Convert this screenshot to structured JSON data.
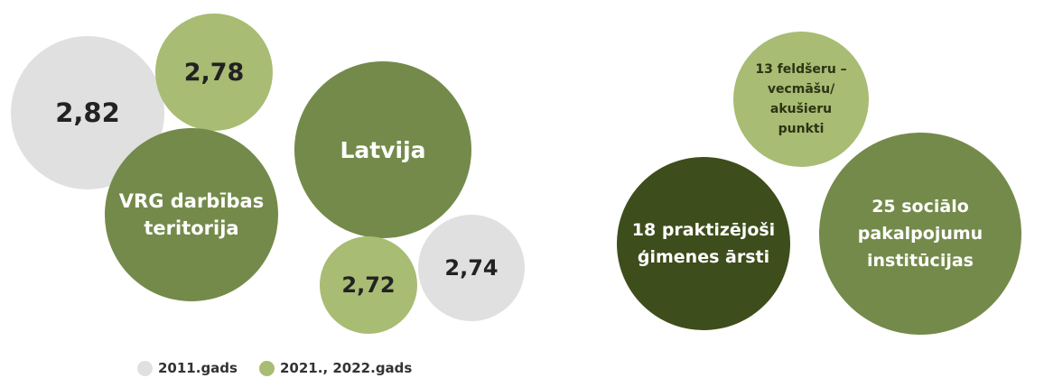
{
  "colors": {
    "gray": "#e0e0e0",
    "light_green": "#a8bc73",
    "mid_green": "#748a4a",
    "dark_green": "#3e4d1c",
    "text_dark": "#222222",
    "text_light": "#ffffff"
  },
  "chart_data": [
    {
      "type": "bubble",
      "title": "",
      "bubbles": [
        {
          "label": "2,82",
          "value": 2.82,
          "series": "2011.gads",
          "color": "gray"
        },
        {
          "label": "2,78",
          "value": 2.78,
          "series": "2021., 2022.gads",
          "color": "light_green"
        },
        {
          "label": "VRG darbības\nteritorija",
          "group": "VRG darbības teritorija",
          "color": "mid_green"
        },
        {
          "label": "Latvija",
          "group": "Latvija",
          "color": "mid_green"
        },
        {
          "label": "2,72",
          "value": 2.72,
          "series": "2021., 2022.gads",
          "color": "light_green"
        },
        {
          "label": "2,74",
          "value": 2.74,
          "series": "2011.gads",
          "color": "gray"
        }
      ],
      "legend": [
        {
          "name": "2011.gads",
          "color": "gray"
        },
        {
          "name": "2021., 2022.gads",
          "color": "light_green"
        }
      ],
      "legend_position": "bottom"
    },
    {
      "type": "bubble",
      "title": "",
      "bubbles": [
        {
          "label": "13 feldšeru –\nvecmāšu/\nakušieru\npunkti",
          "value": 13,
          "color": "light_green"
        },
        {
          "label": "18 praktizējoši\nģimenes ārsti",
          "value": 18,
          "color": "dark_green"
        },
        {
          "label": "25 sociālo\npakalpojumu\ninstitūcijas",
          "value": 25,
          "color": "mid_green"
        }
      ]
    }
  ]
}
